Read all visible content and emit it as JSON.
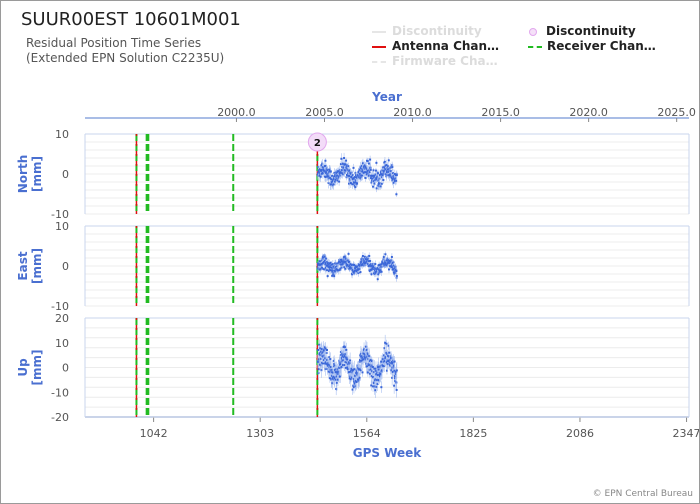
{
  "header": {
    "title": "SUUR00EST 10601M001",
    "subtitle_line1": "Residual Position Time Series",
    "subtitle_line2": "(Extended EPN Solution C2235U)"
  },
  "legend": {
    "items": [
      {
        "label": "Discontinuity",
        "style": "faded-line",
        "color": "#dddddd"
      },
      {
        "label": "Discontinuity",
        "style": "marker",
        "color": "#e8b3f0"
      },
      {
        "label": "Antenna Chan…",
        "style": "solid-line",
        "color": "#e01010"
      },
      {
        "label": "Receiver Chan…",
        "style": "dashed-line",
        "color": "#22bb22"
      },
      {
        "label": "Firmware Cha…",
        "style": "faded-dashed",
        "color": "#dddddd"
      }
    ]
  },
  "footer": {
    "credit": "© EPN Central Bureau"
  },
  "chart_data": {
    "type": "scatter",
    "top_axis": {
      "label": "Year",
      "ticks": [
        "2000.0",
        "2005.0",
        "2010.0",
        "2015.0",
        "2020.0",
        "2025.0"
      ],
      "values": [
        2000,
        2005,
        2010,
        2015,
        2020,
        2025
      ],
      "range": [
        1991.4,
        2025.7
      ]
    },
    "bottom_axis": {
      "label": "GPS Week",
      "ticks": [
        "1042",
        "1303",
        "1564",
        "1825",
        "2086",
        "2347"
      ],
      "values": [
        1042,
        1303,
        1564,
        1825,
        2086,
        2347
      ],
      "range": [
        874,
        2353
      ]
    },
    "panels": [
      {
        "name": "North",
        "ylabel": "North\n[mm]",
        "ticks": [
          10,
          0,
          -10
        ],
        "ylim": [
          -10,
          10
        ]
      },
      {
        "name": "East",
        "ylabel": "East\n[mm]",
        "ticks": [
          10,
          0,
          -10
        ],
        "ylim": [
          -10,
          10
        ]
      },
      {
        "name": "Up",
        "ylabel": "Up\n[mm]",
        "ticks": [
          20,
          10,
          0,
          -10,
          -20
        ],
        "ylim": [
          -20,
          20
        ]
      }
    ],
    "data_span_gps_week": [
      1444,
      1638
    ],
    "approx_spread_mm": {
      "North": 2,
      "East": 1.5,
      "Up": 5
    },
    "events": {
      "antenna_change_gps_week": [
        1000,
        1443
      ],
      "receiver_change_gps_week": [
        1000,
        1025,
        1029,
        1237,
        1443
      ]
    },
    "discontinuity_marker": {
      "label": "2",
      "gps_week": 1443,
      "panel": "North",
      "y": 8
    }
  }
}
